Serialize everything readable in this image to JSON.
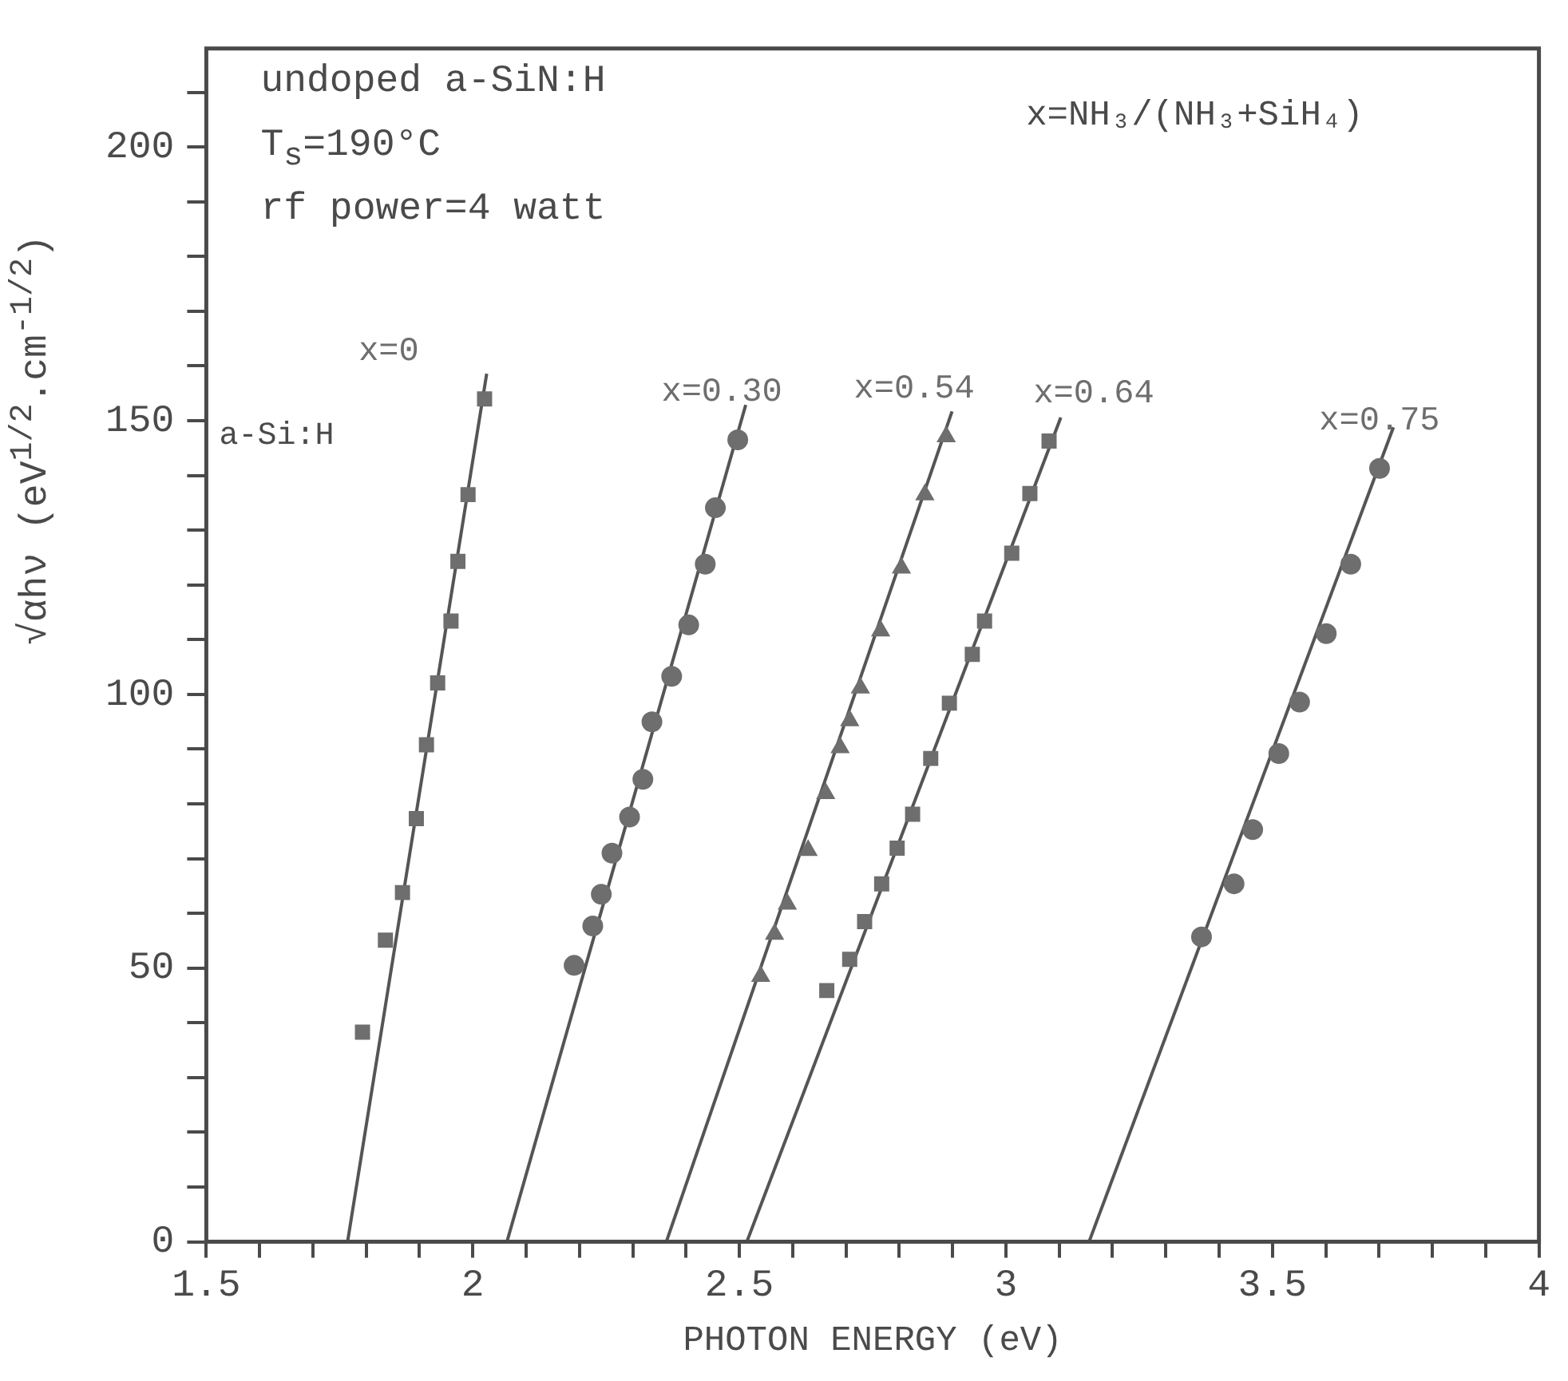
{
  "chart_data": {
    "type": "scatter",
    "xlabel": "PHOTON ENERGY (eV)",
    "ylabel": "√αhν (eV$^{1/2}$.cm$^{-1/2}$)",
    "xlim": [
      1.5,
      4.0
    ],
    "ylim": [
      0,
      218
    ],
    "xticks": [
      1.5,
      {
        "value": 1.6,
        "label": null
      },
      {
        "value": 1.7,
        "label": null
      },
      {
        "value": 1.8,
        "label": null
      },
      {
        "value": 1.9,
        "label": null
      },
      2.0,
      {
        "value": 2.1,
        "label": null
      },
      {
        "value": 2.2,
        "label": null
      },
      {
        "value": 2.3,
        "label": null
      },
      {
        "value": 2.4,
        "label": null
      },
      2.5,
      {
        "value": 2.6,
        "label": null
      },
      {
        "value": 2.7,
        "label": null
      },
      {
        "value": 2.8,
        "label": null
      },
      {
        "value": 2.9,
        "label": null
      },
      3.0,
      {
        "value": 3.1,
        "label": null
      },
      {
        "value": 3.2,
        "label": null
      },
      {
        "value": 3.3,
        "label": null
      },
      {
        "value": 3.4,
        "label": null
      },
      3.5,
      {
        "value": 3.6,
        "label": null
      },
      {
        "value": 3.7,
        "label": null
      },
      {
        "value": 3.8,
        "label": null
      },
      {
        "value": 3.9,
        "label": null
      },
      4.0
    ],
    "yticks": [
      0,
      {
        "value": 10,
        "label": null
      },
      {
        "value": 20,
        "label": null
      },
      {
        "value": 30,
        "label": null
      },
      {
        "value": 40,
        "label": null
      },
      50,
      {
        "value": 60,
        "label": null
      },
      {
        "value": 70,
        "label": null
      },
      {
        "value": 80,
        "label": null
      },
      {
        "value": 90,
        "label": null
      },
      100,
      {
        "value": 110,
        "label": null
      },
      {
        "value": 120,
        "label": null
      },
      {
        "value": 130,
        "label": null
      },
      {
        "value": 140,
        "label": null
      },
      150,
      {
        "value": 160,
        "label": null
      },
      {
        "value": 170,
        "label": null
      },
      {
        "value": 180,
        "label": null
      },
      {
        "value": 190,
        "label": null
      },
      200,
      {
        "value": 210,
        "label": null
      }
    ],
    "grid": false,
    "legend": false,
    "series": [
      {
        "name": "x=0",
        "marker": "square",
        "color": "#6e6e6e",
        "x": [
          2.022,
          1.991,
          1.972,
          1.959,
          1.934,
          1.913,
          1.894,
          1.868,
          1.836,
          1.793
        ],
        "values": [
          154,
          136.5,
          124.3,
          113.4,
          102.1,
          90.8,
          77.3,
          63.8,
          55.1,
          38.3
        ]
      },
      {
        "type": "line",
        "marker": "none",
        "color": "#555555",
        "x": [
          1.765,
          2.026
        ],
        "values": [
          0,
          158.6
        ]
      },
      {
        "name": "x=0.30",
        "marker": "circle",
        "color": "#6e6e6e",
        "x": [
          2.497,
          2.455,
          2.436,
          2.405,
          2.373,
          2.336,
          2.319,
          2.294,
          2.261,
          2.241,
          2.225,
          2.19
        ],
        "values": [
          146.5,
          134.1,
          123.8,
          112.7,
          103.3,
          95,
          84.5,
          77.6,
          71,
          63.5,
          57.7,
          50.5
        ]
      },
      {
        "type": "line",
        "marker": "none",
        "color": "#555555",
        "x": [
          2.064,
          2.512
        ],
        "values": [
          0,
          152.9
        ]
      },
      {
        "name": "x=0.54",
        "marker": "triangle",
        "color": "#6e6e6e",
        "x": [
          2.888,
          2.848,
          2.804,
          2.765,
          2.727,
          2.707,
          2.689,
          2.662,
          2.629,
          2.59,
          2.566,
          2.54
        ],
        "values": [
          147.1,
          136.5,
          123.1,
          111.6,
          101.2,
          95.2,
          90.3,
          81.9,
          71.5,
          61.7,
          56.2,
          48.5
        ]
      },
      {
        "type": "line",
        "marker": "none",
        "color": "#555555",
        "x": [
          2.363,
          2.899
        ],
        "values": [
          0,
          151.7
        ]
      },
      {
        "name": "x=0.64",
        "marker": "square",
        "color": "#6e6e6e",
        "x": [
          3.081,
          3.045,
          3.011,
          2.96,
          2.937,
          2.894,
          2.859,
          2.825,
          2.796,
          2.767,
          2.735,
          2.707,
          2.664
        ],
        "values": [
          146.3,
          136.7,
          125.8,
          113.4,
          107.3,
          98.4,
          88.3,
          78.1,
          71.9,
          65.4,
          58.5,
          51.6,
          45.9
        ]
      },
      {
        "type": "line",
        "marker": "none",
        "color": "#555555",
        "x": [
          2.514,
          3.103
        ],
        "values": [
          0,
          150.6
        ]
      },
      {
        "name": "x=0.75",
        "marker": "circle",
        "color": "#6e6e6e",
        "x": [
          3.701,
          3.647,
          3.601,
          3.551,
          3.512,
          3.463,
          3.428,
          3.367
        ],
        "values": [
          141.3,
          123.8,
          111.1,
          98.6,
          89.2,
          75.3,
          65.4,
          55.7
        ]
      },
      {
        "type": "line",
        "marker": "none",
        "color": "#555555",
        "x": [
          3.156,
          3.727
        ],
        "values": [
          0,
          148.8
        ]
      }
    ],
    "annotations": [
      "undoped a-SiN:H",
      "T$_{s}$=190°C",
      "rf power=4 watt",
      "x=NH₃/(NH₃+SiH₄)",
      "a-Si:H"
    ]
  }
}
